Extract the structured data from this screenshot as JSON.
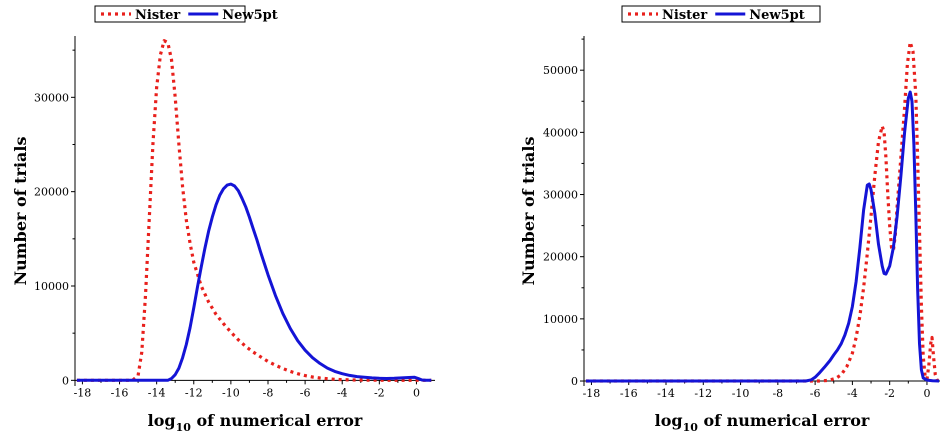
{
  "chart_data": [
    {
      "type": "line",
      "xlabel_base": "log",
      "xlabel_sub": "10",
      "xlabel_rest": " of numerical error",
      "ylabel": "Number of trials",
      "xlim": [
        -18.4,
        1
      ],
      "ylim": [
        -600,
        36500
      ],
      "xticks": [
        -18,
        -16,
        -14,
        -12,
        -10,
        -8,
        -6,
        -4,
        -2,
        0
      ],
      "yticks": [
        0,
        10000,
        20000,
        30000
      ],
      "legend": "top",
      "series": [
        {
          "name": "Nister",
          "color": "#e8201c",
          "style": "dotted",
          "points": [
            [
              -18.3,
              0
            ],
            [
              -16,
              0
            ],
            [
              -15.3,
              0
            ],
            [
              -15.0,
              500
            ],
            [
              -14.8,
              3000
            ],
            [
              -14.6,
              9000
            ],
            [
              -14.4,
              17000
            ],
            [
              -14.2,
              25000
            ],
            [
              -14.0,
              31000
            ],
            [
              -13.8,
              34500
            ],
            [
              -13.6,
              36000
            ],
            [
              -13.4,
              35800
            ],
            [
              -13.2,
              34000
            ],
            [
              -13.0,
              30000
            ],
            [
              -12.8,
              25000
            ],
            [
              -12.6,
              20500
            ],
            [
              -12.4,
              17000
            ],
            [
              -12.2,
              14500
            ],
            [
              -12.0,
              12500
            ],
            [
              -11.6,
              10000
            ],
            [
              -11.2,
              8300
            ],
            [
              -10.8,
              7000
            ],
            [
              -10.4,
              6000
            ],
            [
              -10.0,
              5100
            ],
            [
              -9.6,
              4300
            ],
            [
              -9.2,
              3600
            ],
            [
              -8.8,
              3000
            ],
            [
              -8.4,
              2500
            ],
            [
              -8.0,
              2000
            ],
            [
              -7.6,
              1600
            ],
            [
              -7.2,
              1250
            ],
            [
              -6.8,
              950
            ],
            [
              -6.4,
              700
            ],
            [
              -6.0,
              500
            ],
            [
              -5.6,
              350
            ],
            [
              -5.2,
              250
            ],
            [
              -4.8,
              170
            ],
            [
              -4.4,
              110
            ],
            [
              -4.0,
              70
            ],
            [
              -3.0,
              30
            ],
            [
              -2.0,
              10
            ],
            [
              -1.0,
              0
            ],
            [
              0,
              0
            ],
            [
              0.8,
              0
            ]
          ]
        },
        {
          "name": "New5pt",
          "color": "#1414d6",
          "style": "solid",
          "points": [
            [
              -18.3,
              0
            ],
            [
              -14,
              0
            ],
            [
              -13.4,
              0
            ],
            [
              -13.2,
              200
            ],
            [
              -13.0,
              600
            ],
            [
              -12.8,
              1300
            ],
            [
              -12.6,
              2400
            ],
            [
              -12.4,
              3800
            ],
            [
              -12.2,
              5600
            ],
            [
              -12.0,
              7700
            ],
            [
              -11.8,
              9900
            ],
            [
              -11.6,
              12000
            ],
            [
              -11.4,
              14000
            ],
            [
              -11.2,
              15800
            ],
            [
              -11.0,
              17300
            ],
            [
              -10.8,
              18600
            ],
            [
              -10.6,
              19600
            ],
            [
              -10.4,
              20300
            ],
            [
              -10.2,
              20700
            ],
            [
              -10.0,
              20800
            ],
            [
              -9.8,
              20600
            ],
            [
              -9.6,
              20100
            ],
            [
              -9.4,
              19300
            ],
            [
              -9.2,
              18400
            ],
            [
              -9.0,
              17300
            ],
            [
              -8.8,
              16100
            ],
            [
              -8.6,
              14900
            ],
            [
              -8.4,
              13600
            ],
            [
              -8.2,
              12400
            ],
            [
              -8.0,
              11200
            ],
            [
              -7.6,
              9000
            ],
            [
              -7.2,
              7100
            ],
            [
              -6.8,
              5500
            ],
            [
              -6.4,
              4200
            ],
            [
              -6.0,
              3200
            ],
            [
              -5.6,
              2400
            ],
            [
              -5.2,
              1800
            ],
            [
              -4.8,
              1300
            ],
            [
              -4.4,
              950
            ],
            [
              -4.0,
              700
            ],
            [
              -3.6,
              520
            ],
            [
              -3.2,
              400
            ],
            [
              -2.8,
              320
            ],
            [
              -2.4,
              260
            ],
            [
              -2.0,
              220
            ],
            [
              -1.6,
              200
            ],
            [
              -1.2,
              220
            ],
            [
              -0.8,
              260
            ],
            [
              -0.4,
              300
            ],
            [
              -0.1,
              320
            ],
            [
              0.1,
              200
            ],
            [
              0.3,
              40
            ],
            [
              0.5,
              0
            ],
            [
              0.8,
              0
            ]
          ]
        }
      ]
    },
    {
      "type": "line",
      "xlabel_base": "log",
      "xlabel_sub": "10",
      "xlabel_rest": " of numerical error",
      "ylabel": "Number of trials",
      "xlim": [
        -18.4,
        0.7
      ],
      "ylim": [
        -800,
        55500
      ],
      "xticks": [
        -18,
        -16,
        -14,
        -12,
        -10,
        -8,
        -6,
        -4,
        -2,
        0
      ],
      "yticks": [
        0,
        10000,
        20000,
        30000,
        40000,
        50000
      ],
      "legend": "top",
      "series": [
        {
          "name": "Nister",
          "color": "#e8201c",
          "style": "dotted",
          "points": [
            [
              -18.3,
              0
            ],
            [
              -8,
              0
            ],
            [
              -5.8,
              0
            ],
            [
              -5.3,
              100
            ],
            [
              -4.9,
              400
            ],
            [
              -4.6,
              1000
            ],
            [
              -4.3,
              2300
            ],
            [
              -4.0,
              4500
            ],
            [
              -3.8,
              7000
            ],
            [
              -3.6,
              10500
            ],
            [
              -3.4,
              15000
            ],
            [
              -3.2,
              20500
            ],
            [
              -3.0,
              26500
            ],
            [
              -2.8,
              33000
            ],
            [
              -2.6,
              38500
            ],
            [
              -2.4,
              41000
            ],
            [
              -2.3,
              40000
            ],
            [
              -2.2,
              36000
            ],
            [
              -2.1,
              30000
            ],
            [
              -2.0,
              25000
            ],
            [
              -1.9,
              21500
            ],
            [
              -1.8,
              21000
            ],
            [
              -1.7,
              23500
            ],
            [
              -1.6,
              28000
            ],
            [
              -1.4,
              36000
            ],
            [
              -1.2,
              44000
            ],
            [
              -1.05,
              51000
            ],
            [
              -0.9,
              54500
            ],
            [
              -0.75,
              53000
            ],
            [
              -0.6,
              46000
            ],
            [
              -0.5,
              36000
            ],
            [
              -0.4,
              24000
            ],
            [
              -0.3,
              12000
            ],
            [
              -0.2,
              4000
            ],
            [
              -0.1,
              800
            ],
            [
              0.0,
              300
            ],
            [
              0.1,
              2500
            ],
            [
              0.2,
              6000
            ],
            [
              0.27,
              7000
            ],
            [
              0.35,
              4000
            ],
            [
              0.45,
              1000
            ],
            [
              0.55,
              100
            ],
            [
              0.65,
              0
            ]
          ]
        },
        {
          "name": "New5pt",
          "color": "#1414d6",
          "style": "solid",
          "points": [
            [
              -18.3,
              0
            ],
            [
              -8,
              0
            ],
            [
              -6.5,
              0
            ],
            [
              -6.2,
              200
            ],
            [
              -6.0,
              600
            ],
            [
              -5.8,
              1200
            ],
            [
              -5.5,
              2200
            ],
            [
              -5.2,
              3300
            ],
            [
              -5.0,
              4200
            ],
            [
              -4.8,
              5000
            ],
            [
              -4.6,
              6000
            ],
            [
              -4.4,
              7400
            ],
            [
              -4.2,
              9300
            ],
            [
              -4.0,
              12000
            ],
            [
              -3.8,
              16000
            ],
            [
              -3.6,
              21500
            ],
            [
              -3.4,
              27500
            ],
            [
              -3.2,
              31500
            ],
            [
              -3.1,
              31700
            ],
            [
              -3.0,
              30800
            ],
            [
              -2.8,
              27000
            ],
            [
              -2.6,
              22000
            ],
            [
              -2.4,
              18500
            ],
            [
              -2.3,
              17300
            ],
            [
              -2.2,
              17200
            ],
            [
              -2.0,
              18500
            ],
            [
              -1.8,
              21500
            ],
            [
              -1.6,
              26500
            ],
            [
              -1.4,
              33000
            ],
            [
              -1.2,
              40000
            ],
            [
              -1.0,
              45500
            ],
            [
              -0.9,
              46500
            ],
            [
              -0.8,
              45000
            ],
            [
              -0.7,
              38000
            ],
            [
              -0.6,
              27000
            ],
            [
              -0.5,
              15000
            ],
            [
              -0.4,
              6000
            ],
            [
              -0.3,
              1800
            ],
            [
              -0.2,
              500
            ],
            [
              0.0,
              150
            ],
            [
              0.3,
              50
            ],
            [
              0.65,
              0
            ]
          ]
        }
      ]
    }
  ]
}
